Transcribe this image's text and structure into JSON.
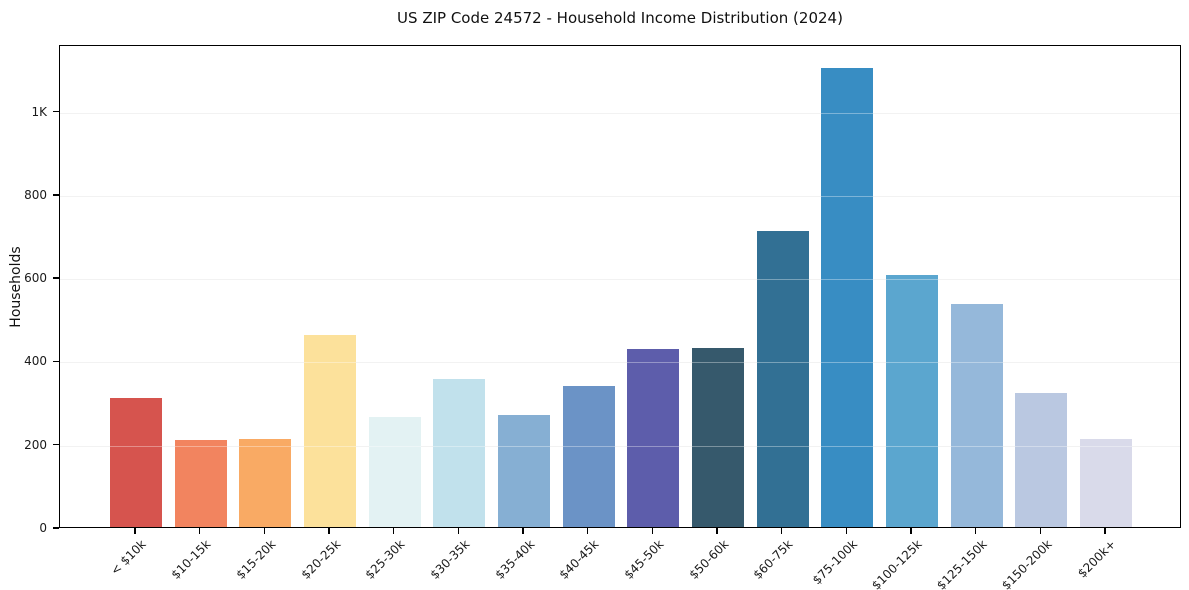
{
  "chart_data": {
    "type": "bar",
    "title": "US ZIP Code 24572 - Household Income Distribution (2024)",
    "xlabel": "",
    "ylabel": "Households",
    "categories": [
      "< $10k",
      "$10-15k",
      "$15-20k",
      "$20-25k",
      "$25-30k",
      "$30-35k",
      "$35-40k",
      "$40-45k",
      "$45-50k",
      "$50-60k",
      "$60-75k",
      "$75-100k",
      "$100-125k",
      "$125-150k",
      "$150-200k",
      "$200k+"
    ],
    "values": [
      310,
      208,
      211,
      461,
      265,
      356,
      270,
      338,
      427,
      430,
      711,
      1103,
      606,
      536,
      322,
      211
    ],
    "bar_colors": [
      "#d6544e",
      "#f2845f",
      "#f9aa64",
      "#fce19b",
      "#e3f2f3",
      "#c1e1ec",
      "#86afd3",
      "#6b93c6",
      "#5d5dab",
      "#36596c",
      "#327094",
      "#388dc3",
      "#5ba6cf",
      "#95b8da",
      "#bac8e1",
      "#d9daea"
    ],
    "ytick_values": [
      0,
      200,
      400,
      600,
      800,
      1000
    ],
    "ytick_labels": [
      "0",
      "200",
      "400",
      "600",
      "800",
      "1K"
    ],
    "ylim": [
      0,
      1160
    ],
    "grid": "horizontal",
    "grid_color": "#ebebeb",
    "axis_color": "#000000",
    "text_color": "#1a1a1a",
    "legend": "none"
  }
}
